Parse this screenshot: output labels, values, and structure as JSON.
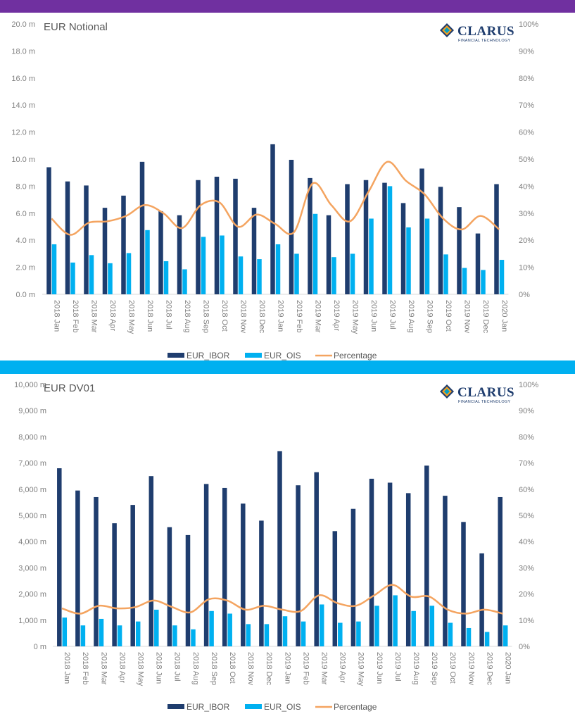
{
  "colors": {
    "top_band": "#7030a0",
    "mid_band": "#00b0f0",
    "ibor": "#1f3d6e",
    "ois": "#00b0f0",
    "percentage": "#f4a460"
  },
  "logo": {
    "name": "CLARUS",
    "tagline": "FINANCIAL TECHNOLOGY"
  },
  "chart_data": [
    {
      "type": "bar",
      "title": "EUR Notional",
      "categories": [
        "2018 Jan",
        "2018 Feb",
        "2018 Mar",
        "2018 Apr",
        "2018 May",
        "2018 Jun",
        "2018 Jul",
        "2018 Aug",
        "2018 Sep",
        "2018 Oct",
        "2018 Nov",
        "2018 Dec",
        "2019 Jan",
        "2019 Feb",
        "2019 Mar",
        "2019 Apr",
        "2019 May",
        "2019 Jun",
        "2019 Jul",
        "2019 Aug",
        "2019 Sep",
        "2019 Oct",
        "2019 Nov",
        "2019 Dec",
        "2020 Jan"
      ],
      "series": [
        {
          "name": "EUR_IBOR",
          "kind": "bar",
          "axis": "left",
          "color": "#1f3d6e",
          "values": [
            9.4,
            8.35,
            8.05,
            6.4,
            7.3,
            9.8,
            6.15,
            5.85,
            8.45,
            8.7,
            8.55,
            6.4,
            11.1,
            9.95,
            8.6,
            5.85,
            8.15,
            8.45,
            8.25,
            6.75,
            9.3,
            7.95,
            6.45,
            4.5,
            8.15
          ]
        },
        {
          "name": "EUR_OIS",
          "kind": "bar",
          "axis": "left",
          "color": "#00b0f0",
          "values": [
            3.7,
            2.35,
            2.9,
            2.3,
            3.05,
            4.75,
            2.45,
            1.85,
            4.25,
            4.35,
            2.8,
            2.6,
            3.7,
            3.0,
            5.95,
            2.75,
            3.0,
            5.6,
            8.0,
            4.95,
            5.6,
            2.95,
            1.95,
            1.8,
            2.55
          ]
        },
        {
          "name": "Percentage",
          "kind": "line",
          "axis": "right",
          "color": "#f4a460",
          "values": [
            28,
            22,
            26.5,
            27,
            29,
            33,
            30,
            24.5,
            33,
            34,
            25,
            29.5,
            26,
            23,
            41,
            33,
            27,
            38,
            49,
            42,
            37,
            28,
            24,
            29,
            24
          ]
        }
      ],
      "yaxis_left": {
        "min": 0,
        "max": 20,
        "step": 2,
        "tick_labels": [
          "0.0 m",
          "2.0 m",
          "4.0 m",
          "6.0 m",
          "8.0 m",
          "10.0 m",
          "12.0 m",
          "14.0 m",
          "16.0 m",
          "18.0 m",
          "20.0 m"
        ]
      },
      "yaxis_right": {
        "min": 0,
        "max": 100,
        "step": 10,
        "tick_labels": [
          "0%",
          "10%",
          "20%",
          "30%",
          "40%",
          "50%",
          "60%",
          "70%",
          "80%",
          "90%",
          "100%"
        ]
      },
      "legend": {
        "placement": "bottom",
        "entries": [
          "EUR_IBOR",
          "EUR_OIS",
          "Percentage"
        ]
      },
      "grid": false
    },
    {
      "type": "bar",
      "title": "EUR DV01",
      "categories": [
        "2018 Jan",
        "2018 Feb",
        "2018 Mar",
        "2018 Apr",
        "2018 May",
        "2018 Jun",
        "2018 Jul",
        "2018 Aug",
        "2018 Sep",
        "2018 Oct",
        "2018 Nov",
        "2018 Dec",
        "2019 Jan",
        "2019 Feb",
        "2019 Mar",
        "2019 Apr",
        "2019 May",
        "2019 Jun",
        "2019 Jul",
        "2019 Aug",
        "2019 Sep",
        "2019 Oct",
        "2019 Nov",
        "2019 Dec",
        "2020 Jan"
      ],
      "series": [
        {
          "name": "EUR_IBOR",
          "kind": "bar",
          "axis": "left",
          "color": "#1f3d6e",
          "values": [
            6800,
            5950,
            5700,
            4700,
            5400,
            6500,
            4550,
            4250,
            6200,
            6050,
            5450,
            4800,
            7450,
            6150,
            6650,
            4400,
            5250,
            6400,
            6250,
            5850,
            6900,
            5750,
            4750,
            3550,
            5700
          ]
        },
        {
          "name": "EUR_OIS",
          "kind": "bar",
          "axis": "left",
          "color": "#00b0f0",
          "values": [
            1100,
            800,
            1050,
            800,
            950,
            1400,
            800,
            650,
            1350,
            1250,
            850,
            850,
            1150,
            950,
            1600,
            900,
            950,
            1550,
            1950,
            1350,
            1550,
            900,
            700,
            550,
            800
          ]
        },
        {
          "name": "Percentage",
          "kind": "line",
          "axis": "right",
          "color": "#f4a460",
          "values": [
            14.5,
            12.5,
            15.5,
            14.5,
            15,
            17.5,
            15,
            13,
            18,
            17.5,
            14,
            15.5,
            14,
            13.5,
            19.5,
            16.5,
            15.5,
            19.5,
            23.5,
            19,
            19,
            14,
            12.5,
            14,
            12.5
          ]
        }
      ],
      "yaxis_left": {
        "min": 0,
        "max": 10000,
        "step": 1000,
        "tick_labels": [
          "0 m",
          "1,000 m",
          "2,000 m",
          "3,000 m",
          "4,000 m",
          "5,000 m",
          "6,000 m",
          "7,000 m",
          "8,000 m",
          "9,000 m",
          "10,000 m"
        ]
      },
      "yaxis_right": {
        "min": 0,
        "max": 100,
        "step": 10,
        "tick_labels": [
          "0%",
          "10%",
          "20%",
          "30%",
          "40%",
          "50%",
          "60%",
          "70%",
          "80%",
          "90%",
          "100%"
        ]
      },
      "legend": {
        "placement": "bottom",
        "entries": [
          "EUR_IBOR",
          "EUR_OIS",
          "Percentage"
        ]
      },
      "grid": false
    }
  ]
}
